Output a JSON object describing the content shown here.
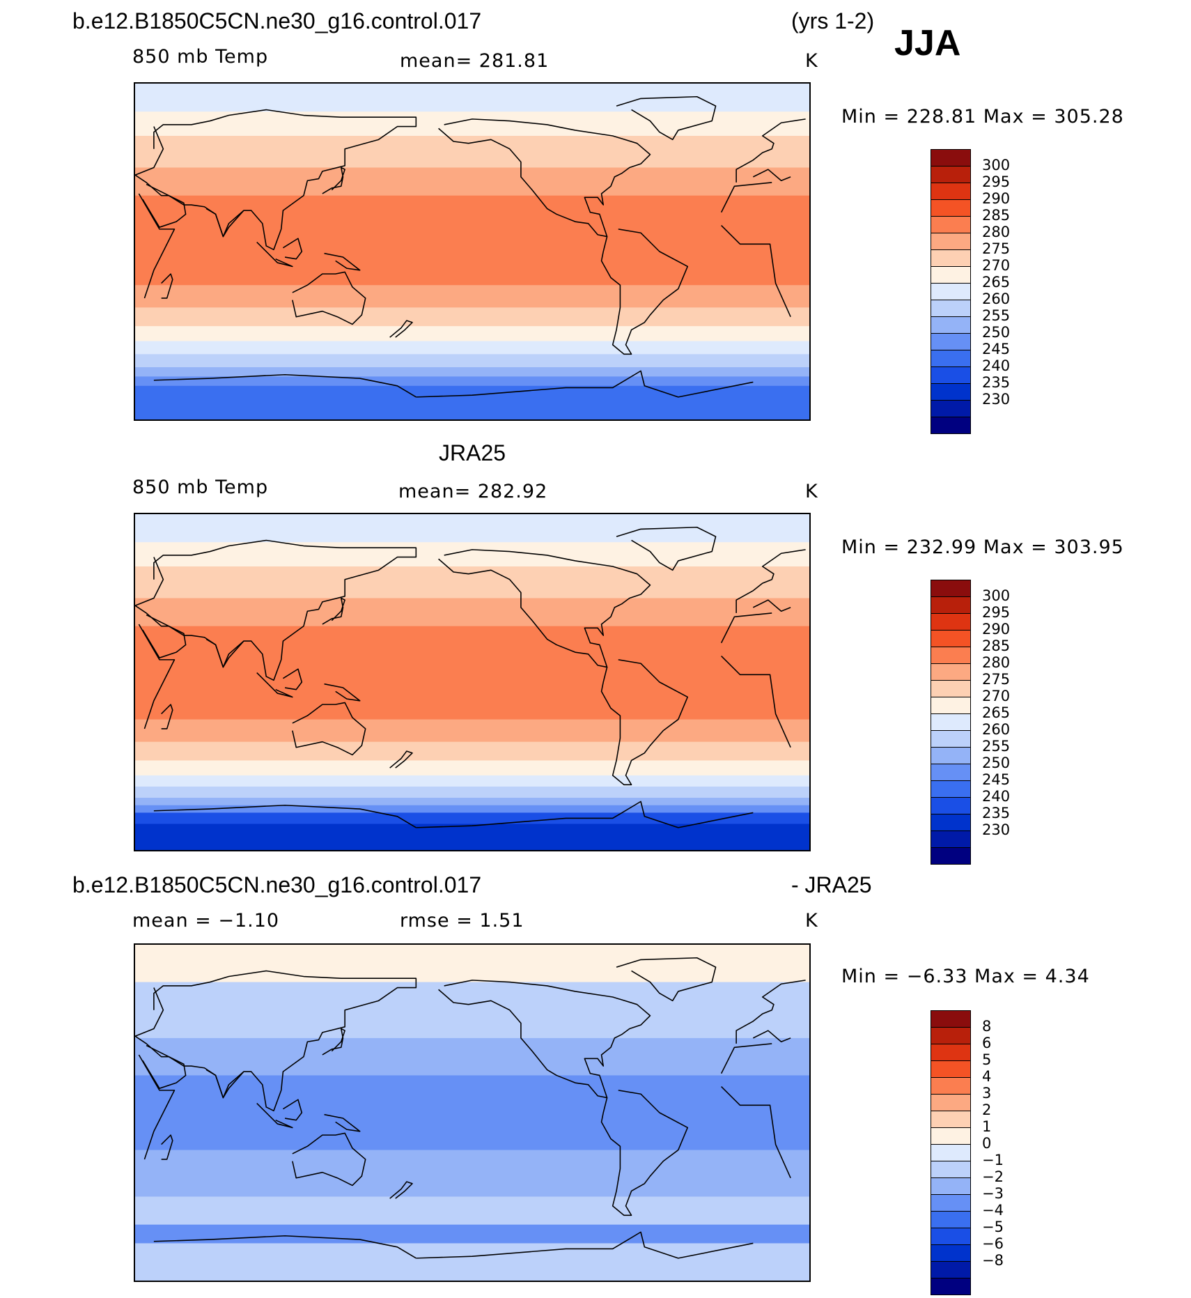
{
  "season": "JJA",
  "panels": [
    {
      "title_left": "b.e12.B1850C5CN.ne30_g16.control.017",
      "title_right": "(yrs 1-2)",
      "sub_left": "850 mb Temp",
      "sub_mid": "mean=  281.81",
      "units": "K",
      "minmax": "Min  =  228.81  Max  =  305.28",
      "palette": "abs",
      "zones": [
        {
          "lat": 90,
          "bin": 8
        },
        {
          "lat": 75,
          "bin": 9
        },
        {
          "lat": 62,
          "bin": 10
        },
        {
          "lat": 45,
          "bin": 11
        },
        {
          "lat": 30,
          "bin": 12
        },
        {
          "lat": -5,
          "bin": 12
        },
        {
          "lat": -18,
          "bin": 11
        },
        {
          "lat": -30,
          "bin": 10
        },
        {
          "lat": -40,
          "bin": 9
        },
        {
          "lat": -48,
          "bin": 8
        },
        {
          "lat": -55,
          "bin": 7
        },
        {
          "lat": -62,
          "bin": 6
        },
        {
          "lat": -67,
          "bin": 5
        },
        {
          "lat": -72,
          "bin": 4
        },
        {
          "lat": -90,
          "bin": -1
        }
      ]
    },
    {
      "title_center": "JRA25",
      "sub_left": "850 mb Temp",
      "sub_mid": "mean=  282.92",
      "units": "K",
      "minmax": "Min  =  232.99  Max  =  303.95",
      "palette": "abs",
      "zones": [
        {
          "lat": 90,
          "bin": 8
        },
        {
          "lat": 75,
          "bin": 9
        },
        {
          "lat": 62,
          "bin": 10
        },
        {
          "lat": 45,
          "bin": 11
        },
        {
          "lat": 30,
          "bin": 12
        },
        {
          "lat": -8,
          "bin": 12
        },
        {
          "lat": -20,
          "bin": 11
        },
        {
          "lat": -32,
          "bin": 10
        },
        {
          "lat": -42,
          "bin": 9
        },
        {
          "lat": -50,
          "bin": 8
        },
        {
          "lat": -56,
          "bin": 7
        },
        {
          "lat": -62,
          "bin": 6
        },
        {
          "lat": -66,
          "bin": 5
        },
        {
          "lat": -70,
          "bin": 3
        },
        {
          "lat": -76,
          "bin": 2
        },
        {
          "lat": -90,
          "bin": 1
        }
      ]
    },
    {
      "title_left": "b.e12.B1850C5CN.ne30_g16.control.017",
      "title_right": "- JRA25",
      "sub_left": "mean  =    −1.10",
      "sub_mid": "rmse  =     1.51",
      "units": "K",
      "minmax": "Min  =    −6.33  Max  =     4.34",
      "palette": "diff",
      "zones": [
        {
          "lat": 90,
          "bin": 9
        },
        {
          "lat": 70,
          "bin": 7
        },
        {
          "lat": 40,
          "bin": 6
        },
        {
          "lat": 20,
          "bin": 5
        },
        {
          "lat": -20,
          "bin": 6
        },
        {
          "lat": -45,
          "bin": 7
        },
        {
          "lat": -60,
          "bin": 5
        },
        {
          "lat": -70,
          "bin": 7
        },
        {
          "lat": -90,
          "bin": -1
        }
      ]
    }
  ],
  "colorbars": {
    "abs": {
      "colors": [
        "#000080",
        "#001aa8",
        "#0033cc",
        "#1a4fe6",
        "#3a6ff0",
        "#6690f5",
        "#94b3f7",
        "#bcd1fa",
        "#deeafd",
        "#fef2e3",
        "#fdd0b3",
        "#fca982",
        "#fb7e50",
        "#f45325",
        "#de3412",
        "#b8200b",
        "#8a0d0d"
      ],
      "ticks": [
        "300",
        "295",
        "290",
        "285",
        "280",
        "275",
        "270",
        "265",
        "260",
        "255",
        "250",
        "245",
        "240",
        "235",
        "230"
      ]
    },
    "diff": {
      "colors": [
        "#000080",
        "#001aa8",
        "#0033cc",
        "#1a4fe6",
        "#3a6ff0",
        "#6690f5",
        "#94b3f7",
        "#bcd1fa",
        "#deeafd",
        "#fef2e3",
        "#fdd0b3",
        "#fca982",
        "#fb7e50",
        "#f45325",
        "#de3412",
        "#b8200b",
        "#8a0d0d"
      ],
      "ticks": [
        "8",
        "6",
        "5",
        "4",
        "3",
        "2",
        "1",
        "0",
        "−1",
        "−2",
        "−3",
        "−4",
        "−5",
        "−6",
        "−8"
      ]
    }
  }
}
